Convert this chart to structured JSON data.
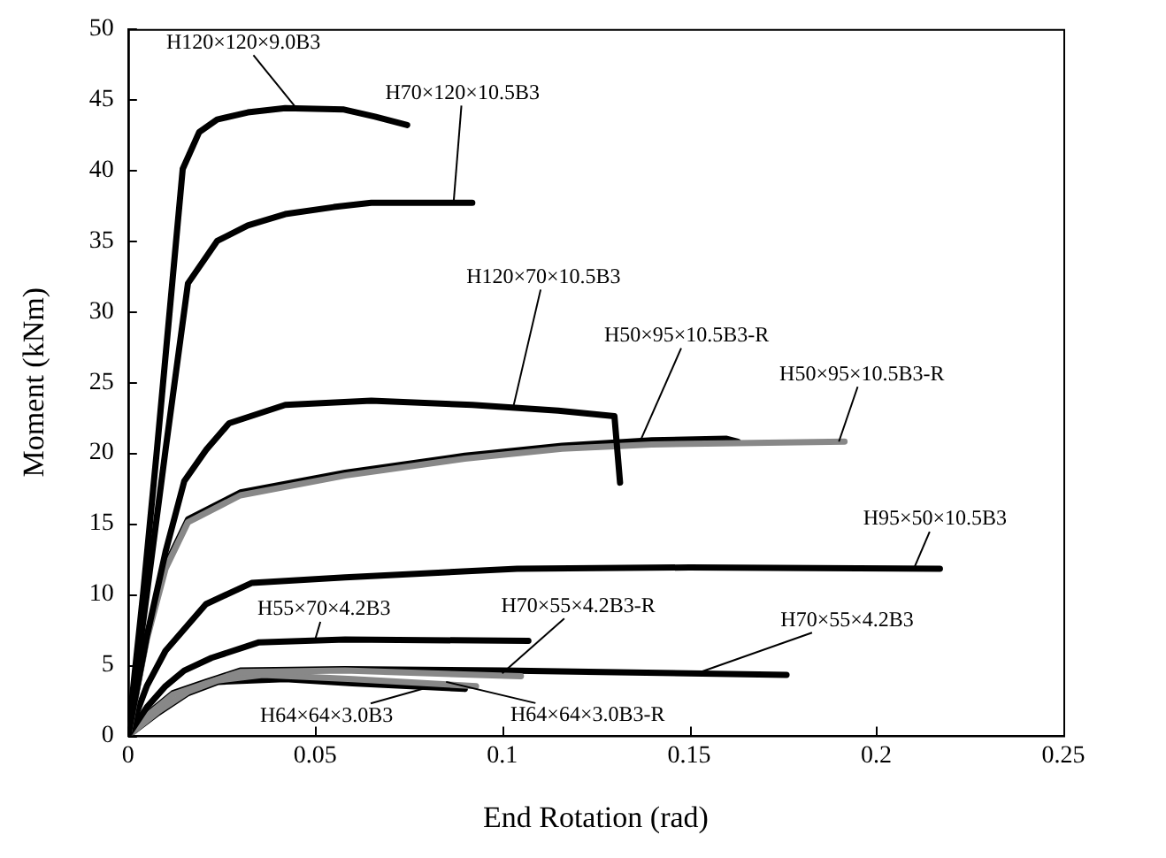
{
  "chart_data": {
    "type": "line",
    "xlabel": "End Rotation (rad)",
    "ylabel": "Moment (kNm)",
    "xlim": [
      0,
      0.25
    ],
    "xticks": [
      0,
      0.05,
      0.1,
      0.15,
      0.2,
      0.25
    ],
    "ylim": [
      0,
      50
    ],
    "yticks": [
      0,
      5,
      10,
      15,
      20,
      25,
      30,
      35,
      40,
      45,
      50
    ],
    "grid": false,
    "legend": false,
    "marker": "none",
    "line_style": "solid",
    "series": [
      {
        "color": "#000000",
        "x": [
          0,
          0.004,
          0.0077,
          0.0146,
          0.019,
          0.0238,
          0.032,
          0.042,
          0.0577,
          0.066,
          0.0746
        ],
        "values": [
          0,
          10,
          20.2,
          40.1,
          42.7,
          43.6,
          44.1,
          44.4,
          44.3,
          43.8,
          43.2
        ]
      },
      {
        "color": "#000000",
        "x": [
          0,
          0.005,
          0.01,
          0.016,
          0.0238,
          0.032,
          0.042,
          0.055,
          0.065,
          0.092
        ],
        "values": [
          0,
          10,
          20.2,
          32,
          35,
          36.1,
          36.9,
          37.4,
          37.7,
          37.7
        ]
      },
      {
        "color": "#000000",
        "x": [
          0,
          0.005,
          0.01,
          0.015,
          0.0208,
          0.027,
          0.042,
          0.065,
          0.092,
          0.115,
          0.13,
          0.1315
        ],
        "values": [
          0,
          7,
          13,
          18,
          20.2,
          22.1,
          23.4,
          23.7,
          23.4,
          23,
          22.6,
          17.9
        ]
      },
      {
        "color": "#888888",
        "x": [
          0,
          0.005,
          0.01,
          0.016,
          0.03,
          0.058,
          0.09,
          0.116,
          0.14,
          0.163,
          0.1915
        ],
        "values": [
          0,
          6.8,
          11.8,
          15.1,
          17,
          18.4,
          19.6,
          20.3,
          20.6,
          20.7,
          20.8
        ]
      },
      {
        "color": "#000000",
        "x": [
          0,
          0.005,
          0.01,
          0.016,
          0.03,
          0.058,
          0.09,
          0.116,
          0.14,
          0.16,
          0.163
        ],
        "values": [
          0,
          7,
          12,
          15.3,
          17.2,
          18.6,
          19.8,
          20.5,
          20.9,
          21,
          20.8
        ]
      },
      {
        "color": "#000000",
        "x": [
          0,
          0.005,
          0.01,
          0.0208,
          0.033,
          0.058,
          0.104,
          0.15,
          0.217
        ],
        "values": [
          0,
          3.5,
          6,
          9.3,
          10.8,
          11.2,
          11.8,
          11.9,
          11.8
        ]
      },
      {
        "color": "#000000",
        "x": [
          0,
          0.005,
          0.01,
          0.015,
          0.0223,
          0.035,
          0.058,
          0.107
        ],
        "values": [
          0,
          2,
          3.5,
          4.6,
          5.5,
          6.6,
          6.8,
          6.7
        ]
      },
      {
        "color": "#888888",
        "x": [
          0,
          0.006,
          0.012,
          0.0208,
          0.03,
          0.058,
          0.105
        ],
        "values": [
          0,
          1.6,
          2.9,
          3.7,
          4.5,
          4.6,
          4.2
        ]
      },
      {
        "color": "#000000",
        "x": [
          0,
          0.006,
          0.012,
          0.0208,
          0.03,
          0.058,
          0.1,
          0.176
        ],
        "values": [
          0,
          1.7,
          3,
          3.8,
          4.6,
          4.7,
          4.6,
          4.3
        ]
      },
      {
        "color": "#888888",
        "x": [
          0,
          0.008,
          0.016,
          0.024,
          0.036,
          0.06,
          0.093
        ],
        "values": [
          0,
          1.7,
          3.1,
          3.9,
          4.3,
          4,
          3.5
        ]
      },
      {
        "color": "#000000",
        "x": [
          0,
          0.008,
          0.016,
          0.024,
          0.042,
          0.06,
          0.09
        ],
        "values": [
          0,
          1.6,
          3,
          3.8,
          4,
          3.7,
          3.3
        ]
      }
    ],
    "annotations": [
      {
        "text": "H120×120×9.0B3",
        "x": 0.045,
        "y": 44.4
      },
      {
        "text": "H70×120×10.5B3",
        "x": 0.087,
        "y": 37.7
      },
      {
        "text": "H120×70×10.5B3",
        "x": 0.103,
        "y": 23.3
      },
      {
        "text": "H50×95×10.5B3-R",
        "x": 0.137,
        "y": 20.9
      },
      {
        "text": "H50×95×10.5B3-R",
        "x": 0.19,
        "y": 20.8
      },
      {
        "text": "H95×50×10.5B3",
        "x": 0.21,
        "y": 11.8
      },
      {
        "text": "H55×70×4.2B3",
        "x": 0.05,
        "y": 6.8
      },
      {
        "text": "H70×55×4.2B3-R",
        "x": 0.1,
        "y": 4.4
      },
      {
        "text": "H70×55×4.2B3",
        "x": 0.152,
        "y": 4.4
      },
      {
        "text": "H64×64×3.0B3",
        "x": 0.08,
        "y": 3.4
      },
      {
        "text": "H64×64×3.0B3-R",
        "x": 0.085,
        "y": 3.8
      }
    ]
  }
}
